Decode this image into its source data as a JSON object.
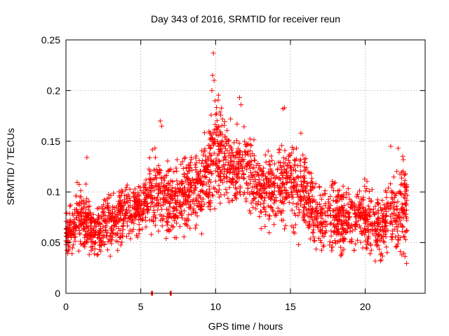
{
  "chart_data": {
    "type": "scatter",
    "title": "Day 343 of 2016, SRMTID for receiver reun",
    "xlabel": "GPS time / hours",
    "ylabel": "SRMTID / TECUs",
    "xlim": [
      0,
      24
    ],
    "ylim": [
      0,
      0.25
    ],
    "grid": true,
    "marker": "+",
    "color": "#ff0000",
    "xticks": [
      0,
      5,
      10,
      15,
      20
    ],
    "xtick_labels": [
      "0",
      "5",
      "10",
      "15",
      "20"
    ],
    "yticks": [
      0,
      0.05,
      0.1,
      0.15,
      0.2,
      0.25
    ],
    "ytick_labels": [
      "0",
      "0.05",
      "0.1",
      "0.15",
      "0.2",
      "0.25"
    ],
    "x_extent_hours": [
      0,
      22.8
    ],
    "typical_range_by_hour": [
      {
        "hour": 0,
        "low": 0.03,
        "high": 0.09
      },
      {
        "hour": 1,
        "low": 0.03,
        "high": 0.12
      },
      {
        "hour": 2,
        "low": 0.02,
        "high": 0.1
      },
      {
        "hour": 3,
        "low": 0.03,
        "high": 0.11
      },
      {
        "hour": 4,
        "low": 0.04,
        "high": 0.12
      },
      {
        "hour": 5,
        "low": 0.05,
        "high": 0.12
      },
      {
        "hour": 6,
        "low": 0.05,
        "high": 0.16
      },
      {
        "hour": 7,
        "low": 0.04,
        "high": 0.14
      },
      {
        "hour": 8,
        "low": 0.05,
        "high": 0.15
      },
      {
        "hour": 9,
        "low": 0.05,
        "high": 0.15
      },
      {
        "hour": 10,
        "low": 0.07,
        "high": 0.21
      },
      {
        "hour": 11,
        "low": 0.08,
        "high": 0.17
      },
      {
        "hour": 12,
        "low": 0.07,
        "high": 0.18
      },
      {
        "hour": 13,
        "low": 0.06,
        "high": 0.15
      },
      {
        "hour": 14,
        "low": 0.05,
        "high": 0.15
      },
      {
        "hour": 15,
        "low": 0.04,
        "high": 0.18
      },
      {
        "hour": 16,
        "low": 0.04,
        "high": 0.15
      },
      {
        "hour": 17,
        "low": 0.03,
        "high": 0.12
      },
      {
        "hour": 18,
        "low": 0.03,
        "high": 0.12
      },
      {
        "hour": 19,
        "low": 0.03,
        "high": 0.11
      },
      {
        "hour": 20,
        "low": 0.03,
        "high": 0.12
      },
      {
        "hour": 21,
        "low": 0.02,
        "high": 0.11
      },
      {
        "hour": 22,
        "low": 0.02,
        "high": 0.14
      }
    ],
    "outliers": [
      {
        "x": 9.85,
        "y": 0.237
      },
      {
        "x": 9.8,
        "y": 0.215
      },
      {
        "x": 9.9,
        "y": 0.21
      },
      {
        "x": 9.75,
        "y": 0.2
      },
      {
        "x": 9.95,
        "y": 0.19
      },
      {
        "x": 11.6,
        "y": 0.193
      },
      {
        "x": 11.7,
        "y": 0.186
      },
      {
        "x": 14.6,
        "y": 0.183
      },
      {
        "x": 14.5,
        "y": 0.182
      },
      {
        "x": 6.3,
        "y": 0.17
      },
      {
        "x": 6.4,
        "y": 0.165
      },
      {
        "x": 11.0,
        "y": 0.172
      },
      {
        "x": 15.7,
        "y": 0.158
      },
      {
        "x": 21.7,
        "y": 0.145
      },
      {
        "x": 22.2,
        "y": 0.143
      },
      {
        "x": 1.4,
        "y": 0.134
      }
    ],
    "zero_values": [
      5.75,
      7.0
    ]
  }
}
